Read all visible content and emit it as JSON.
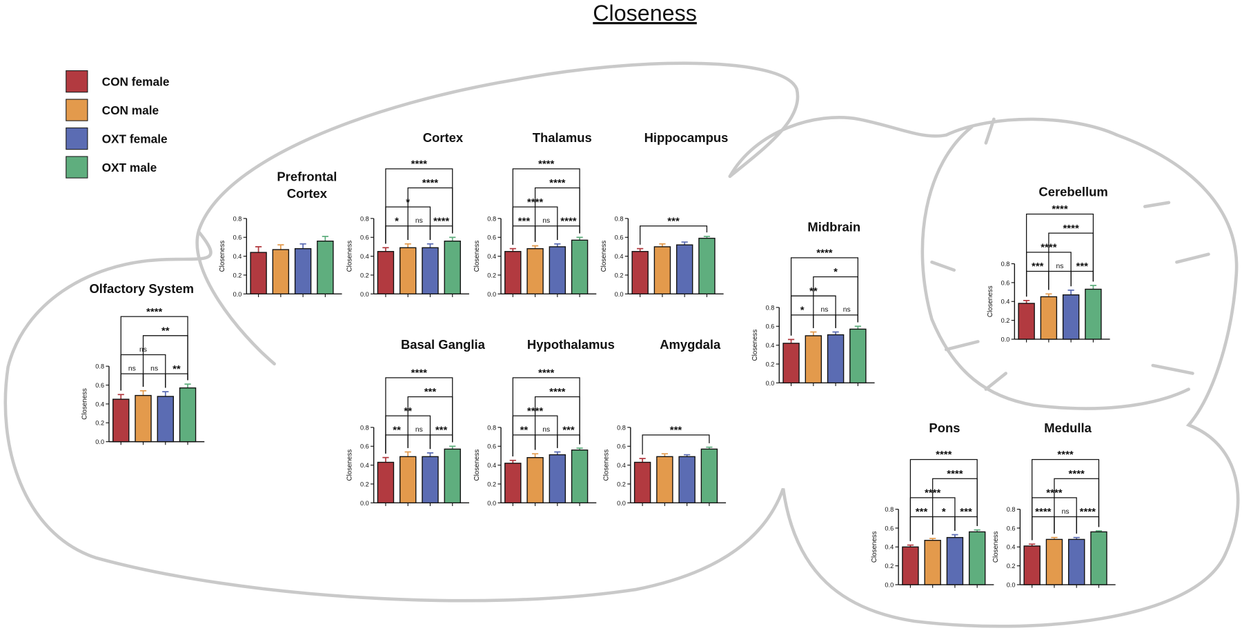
{
  "title": "Closeness",
  "legend": [
    {
      "name": "CON female",
      "color": "#b23a40"
    },
    {
      "name": "CON male",
      "color": "#e39a4c"
    },
    {
      "name": "OXT female",
      "color": "#5b6cb3"
    },
    {
      "name": "OXT male",
      "color": "#5fae7e"
    }
  ],
  "chart_data": [
    {
      "type": "bar",
      "title": "Olfactory System",
      "ylabel": "Closeness",
      "values": [
        0.45,
        0.49,
        0.48,
        0.57
      ],
      "errors": [
        0.05,
        0.05,
        0.05,
        0.04
      ],
      "ylim": [
        0,
        0.8
      ],
      "yticks": [
        {
          "value": 0,
          "label": "0.0"
        },
        {
          "value": 0.2,
          "label": "0.2"
        },
        {
          "value": 0.4,
          "label": "0.4"
        },
        {
          "value": 0.6,
          "label": "0.6"
        },
        {
          "value": 0.8,
          "label": "0.8"
        }
      ],
      "brackets": [
        {
          "from": 0,
          "to": 1,
          "label": "ns"
        },
        {
          "from": 1,
          "to": 2,
          "label": "ns"
        },
        {
          "from": 2,
          "to": 3,
          "label": "**"
        },
        {
          "from": 0,
          "to": 2,
          "label": "ns"
        },
        {
          "from": 1,
          "to": 3,
          "label": "**"
        },
        {
          "from": 0,
          "to": 3,
          "label": "****"
        }
      ]
    },
    {
      "type": "bar",
      "title": [
        "Prefrontal",
        "Cortex"
      ],
      "ylabel": "Closeness",
      "values": [
        0.44,
        0.47,
        0.48,
        0.56
      ],
      "errors": [
        0.06,
        0.05,
        0.05,
        0.05
      ],
      "ylim": [
        0,
        0.8
      ],
      "yticks": [
        {
          "value": 0,
          "label": "0.0"
        },
        {
          "value": 0.2,
          "label": "0.2"
        },
        {
          "value": 0.4,
          "label": "0.4"
        },
        {
          "value": 0.6,
          "label": "0.6"
        },
        {
          "value": 0.8,
          "label": "0.8"
        }
      ],
      "brackets": []
    },
    {
      "type": "bar",
      "title": "Cortex",
      "ylabel": "Closeness",
      "values": [
        0.45,
        0.49,
        0.49,
        0.56
      ],
      "errors": [
        0.04,
        0.04,
        0.04,
        0.04
      ],
      "ylim": [
        0,
        0.8
      ],
      "yticks": [
        {
          "value": 0,
          "label": "0.0"
        },
        {
          "value": 0.2,
          "label": "0.2"
        },
        {
          "value": 0.4,
          "label": "0.4"
        },
        {
          "value": 0.6,
          "label": "0.6"
        },
        {
          "value": 0.8,
          "label": "0.8"
        }
      ],
      "brackets": [
        {
          "from": 0,
          "to": 1,
          "label": "*"
        },
        {
          "from": 1,
          "to": 2,
          "label": "ns"
        },
        {
          "from": 2,
          "to": 3,
          "label": "****"
        },
        {
          "from": 0,
          "to": 2,
          "label": "*"
        },
        {
          "from": 1,
          "to": 3,
          "label": "****"
        },
        {
          "from": 0,
          "to": 3,
          "label": "****"
        }
      ]
    },
    {
      "type": "bar",
      "title": "Thalamus",
      "ylabel": "Closeness",
      "values": [
        0.45,
        0.48,
        0.5,
        0.57
      ],
      "errors": [
        0.03,
        0.03,
        0.03,
        0.03
      ],
      "ylim": [
        0,
        0.8
      ],
      "yticks": [
        {
          "value": 0,
          "label": "0.0"
        },
        {
          "value": 0.2,
          "label": "0.2"
        },
        {
          "value": 0.4,
          "label": "0.4"
        },
        {
          "value": 0.6,
          "label": "0.6"
        },
        {
          "value": 0.8,
          "label": "0.8"
        }
      ],
      "brackets": [
        {
          "from": 0,
          "to": 1,
          "label": "***"
        },
        {
          "from": 1,
          "to": 2,
          "label": "ns"
        },
        {
          "from": 2,
          "to": 3,
          "label": "****"
        },
        {
          "from": 0,
          "to": 2,
          "label": "****"
        },
        {
          "from": 1,
          "to": 3,
          "label": "****"
        },
        {
          "from": 0,
          "to": 3,
          "label": "****"
        }
      ]
    },
    {
      "type": "bar",
      "title": "Hippocampus",
      "ylabel": "Closeness",
      "values": [
        0.45,
        0.5,
        0.52,
        0.59
      ],
      "errors": [
        0.03,
        0.03,
        0.03,
        0.02
      ],
      "ylim": [
        0,
        0.8
      ],
      "yticks": [
        {
          "value": 0,
          "label": "0.0"
        },
        {
          "value": 0.2,
          "label": "0.2"
        },
        {
          "value": 0.4,
          "label": "0.4"
        },
        {
          "value": 0.6,
          "label": "0.6"
        },
        {
          "value": 0.8,
          "label": "0.8"
        }
      ],
      "brackets": [
        {
          "from": 0,
          "to": 3,
          "label": "***"
        }
      ]
    },
    {
      "type": "bar",
      "title": "Basal Ganglia",
      "ylabel": "Closeness",
      "values": [
        0.43,
        0.49,
        0.49,
        0.57
      ],
      "errors": [
        0.05,
        0.05,
        0.04,
        0.03
      ],
      "ylim": [
        0,
        0.8
      ],
      "yticks": [
        {
          "value": 0,
          "label": "0.0"
        },
        {
          "value": 0.2,
          "label": "0.2"
        },
        {
          "value": 0.4,
          "label": "0.4"
        },
        {
          "value": 0.6,
          "label": "0.6"
        },
        {
          "value": 0.8,
          "label": "0.8"
        }
      ],
      "brackets": [
        {
          "from": 0,
          "to": 1,
          "label": "**"
        },
        {
          "from": 1,
          "to": 2,
          "label": "ns"
        },
        {
          "from": 2,
          "to": 3,
          "label": "***"
        },
        {
          "from": 0,
          "to": 2,
          "label": "**"
        },
        {
          "from": 1,
          "to": 3,
          "label": "***"
        },
        {
          "from": 0,
          "to": 3,
          "label": "****"
        }
      ]
    },
    {
      "type": "bar",
      "title": "Hypothalamus",
      "ylabel": "Closeness",
      "values": [
        0.42,
        0.48,
        0.51,
        0.56
      ],
      "errors": [
        0.03,
        0.04,
        0.03,
        0.02
      ],
      "ylim": [
        0,
        0.8
      ],
      "yticks": [
        {
          "value": 0,
          "label": "0.0"
        },
        {
          "value": 0.2,
          "label": "0.2"
        },
        {
          "value": 0.4,
          "label": "0.4"
        },
        {
          "value": 0.6,
          "label": "0.6"
        },
        {
          "value": 0.8,
          "label": "0.8"
        }
      ],
      "brackets": [
        {
          "from": 0,
          "to": 1,
          "label": "**"
        },
        {
          "from": 1,
          "to": 2,
          "label": "ns"
        },
        {
          "from": 2,
          "to": 3,
          "label": "***"
        },
        {
          "from": 0,
          "to": 2,
          "label": "****"
        },
        {
          "from": 1,
          "to": 3,
          "label": "****"
        },
        {
          "from": 0,
          "to": 3,
          "label": "****"
        }
      ]
    },
    {
      "type": "bar",
      "title": "Amygdala",
      "ylabel": "Closeness",
      "values": [
        0.43,
        0.49,
        0.49,
        0.57
      ],
      "errors": [
        0.04,
        0.03,
        0.02,
        0.02
      ],
      "ylim": [
        0,
        0.8
      ],
      "yticks": [
        {
          "value": 0,
          "label": "0.0"
        },
        {
          "value": 0.2,
          "label": "0.2"
        },
        {
          "value": 0.4,
          "label": "0.4"
        },
        {
          "value": 0.6,
          "label": "0.6"
        },
        {
          "value": 0.8,
          "label": "0.8"
        }
      ],
      "brackets": [
        {
          "from": 0,
          "to": 3,
          "label": "***"
        }
      ]
    },
    {
      "type": "bar",
      "title": "Midbrain",
      "ylabel": "Closeness",
      "values": [
        0.42,
        0.5,
        0.51,
        0.57
      ],
      "errors": [
        0.04,
        0.04,
        0.03,
        0.03
      ],
      "ylim": [
        0,
        0.8
      ],
      "yticks": [
        {
          "value": 0,
          "label": "0.0"
        },
        {
          "value": 0.2,
          "label": "0.2"
        },
        {
          "value": 0.4,
          "label": "0.4"
        },
        {
          "value": 0.6,
          "label": "0.6"
        },
        {
          "value": 0.8,
          "label": "0.8"
        }
      ],
      "brackets": [
        {
          "from": 0,
          "to": 1,
          "label": "*"
        },
        {
          "from": 1,
          "to": 2,
          "label": "ns"
        },
        {
          "from": 2,
          "to": 3,
          "label": "ns"
        },
        {
          "from": 0,
          "to": 2,
          "label": "**"
        },
        {
          "from": 1,
          "to": 3,
          "label": "*"
        },
        {
          "from": 0,
          "to": 3,
          "label": "****"
        }
      ]
    },
    {
      "type": "bar",
      "title": "Cerebellum",
      "ylabel": "Closeness",
      "values": [
        0.38,
        0.45,
        0.47,
        0.53
      ],
      "errors": [
        0.03,
        0.03,
        0.05,
        0.04
      ],
      "ylim": [
        0,
        0.8
      ],
      "yticks": [
        {
          "value": 0,
          "label": "0.0"
        },
        {
          "value": 0.2,
          "label": "0.2"
        },
        {
          "value": 0.4,
          "label": "0.4"
        },
        {
          "value": 0.6,
          "label": "0.6"
        },
        {
          "value": 0.8,
          "label": "0.8"
        }
      ],
      "brackets": [
        {
          "from": 0,
          "to": 1,
          "label": "***"
        },
        {
          "from": 1,
          "to": 2,
          "label": "ns"
        },
        {
          "from": 2,
          "to": 3,
          "label": "***"
        },
        {
          "from": 0,
          "to": 2,
          "label": "****"
        },
        {
          "from": 1,
          "to": 3,
          "label": "****"
        },
        {
          "from": 0,
          "to": 3,
          "label": "****"
        }
      ]
    },
    {
      "type": "bar",
      "title": "Pons",
      "ylabel": "Closeness",
      "values": [
        0.4,
        0.47,
        0.5,
        0.56
      ],
      "errors": [
        0.02,
        0.02,
        0.03,
        0.02
      ],
      "ylim": [
        0,
        0.8
      ],
      "yticks": [
        {
          "value": 0,
          "label": "0.0"
        },
        {
          "value": 0.2,
          "label": "0.2"
        },
        {
          "value": 0.4,
          "label": "0.4"
        },
        {
          "value": 0.6,
          "label": "0.6"
        },
        {
          "value": 0.8,
          "label": "0.8"
        }
      ],
      "brackets": [
        {
          "from": 0,
          "to": 1,
          "label": "***"
        },
        {
          "from": 1,
          "to": 2,
          "label": "*"
        },
        {
          "from": 2,
          "to": 3,
          "label": "***"
        },
        {
          "from": 0,
          "to": 2,
          "label": "****"
        },
        {
          "from": 1,
          "to": 3,
          "label": "****"
        },
        {
          "from": 0,
          "to": 3,
          "label": "****"
        }
      ]
    },
    {
      "type": "bar",
      "title": "Medulla",
      "ylabel": "Closeness",
      "values": [
        0.41,
        0.48,
        0.48,
        0.56
      ],
      "errors": [
        0.02,
        0.02,
        0.02,
        0.01
      ],
      "ylim": [
        0,
        0.8
      ],
      "yticks": [
        {
          "value": 0,
          "label": "0.0"
        },
        {
          "value": 0.2,
          "label": "0.2"
        },
        {
          "value": 0.4,
          "label": "0.4"
        },
        {
          "value": 0.6,
          "label": "0.6"
        },
        {
          "value": 0.8,
          "label": "0.8"
        }
      ],
      "brackets": [
        {
          "from": 0,
          "to": 1,
          "label": "****"
        },
        {
          "from": 1,
          "to": 2,
          "label": "ns"
        },
        {
          "from": 2,
          "to": 3,
          "label": "****"
        },
        {
          "from": 0,
          "to": 2,
          "label": "****"
        },
        {
          "from": 1,
          "to": 3,
          "label": "****"
        },
        {
          "from": 0,
          "to": 3,
          "label": "****"
        }
      ]
    }
  ]
}
